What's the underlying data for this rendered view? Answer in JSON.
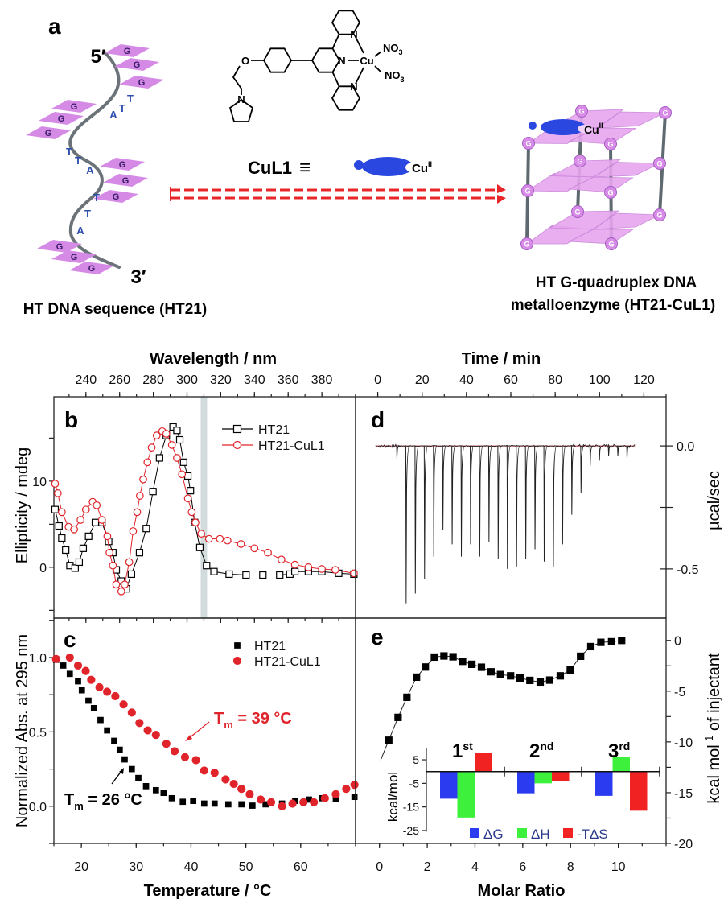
{
  "panel_a": {
    "panel_label": "a",
    "five_prime": "5′",
    "three_prime": "3′",
    "guanine": "G",
    "adenine": "A",
    "thymine": "T",
    "sequence_caption": "HT DNA sequence (HT21)",
    "complex_name": "CuL1",
    "equivalence": "≡",
    "copper": "Cu",
    "oxidation_state": "II",
    "atom_O": "O",
    "atom_N": "N",
    "nitrate": "NO",
    "nitrate_sub": "3",
    "product_caption_line1": "HT G-quadruplex DNA",
    "product_caption_line2": "metalloenzyme (HT21-CuL1)",
    "colors": {
      "guanine_plate": "#d58be6",
      "strand": "#6b7378",
      "cul1": "#2a48e0",
      "arrow": "#e8262a",
      "rod": "#5f6a70"
    }
  },
  "chart_data": [
    {
      "type": "scatter",
      "panel_label": "b",
      "xlabel": "Wavelength / nm",
      "ylabel": "Ellipticity / mdeg",
      "xlim": [
        221,
        400
      ],
      "ylim": [
        -5.9,
        19.8
      ],
      "xticks": [
        "240",
        "260",
        "280",
        "300",
        "320",
        "340",
        "360",
        "380"
      ],
      "yticks": [
        "0",
        "10"
      ],
      "x_axis_position": "top",
      "highlight_band_nm": 310,
      "legend_position": "top-right",
      "series": [
        {
          "name": "HT21",
          "marker": "open-square",
          "color": "#000000",
          "x": [
            221.7,
            224,
            225.7,
            228,
            230.5,
            233.6,
            236,
            238.4,
            241.6,
            245.6,
            249.5,
            253.5,
            256,
            258,
            261,
            264,
            267,
            271.8,
            275.8,
            279.8,
            283.7,
            287.7,
            291.7,
            294,
            295.7,
            298,
            300.5,
            302,
            304.5,
            307.6,
            311.6,
            316,
            325,
            335,
            345,
            355,
            361,
            364,
            372,
            380,
            390,
            399
          ],
          "y": [
            6.7,
            4.8,
            3.4,
            2.0,
            0.2,
            -0.1,
            0.6,
            2.2,
            3.6,
            5.2,
            5.2,
            3.0,
            1.7,
            -0.3,
            -1.6,
            -2.5,
            -0.8,
            1.7,
            4.5,
            8.8,
            12.7,
            15.3,
            16.3,
            15.9,
            14.8,
            12.2,
            10.6,
            8.9,
            5.2,
            2.3,
            0.2,
            -0.5,
            -0.8,
            -0.9,
            -0.9,
            -0.9,
            -0.8,
            -0.5,
            -0.5,
            -0.5,
            -0.7,
            -0.8
          ]
        },
        {
          "name": "HT21-CuL1",
          "marker": "open-circle",
          "color": "#e0242b",
          "x": [
            221.7,
            223.3,
            225.7,
            229.7,
            233,
            236.8,
            240,
            244,
            246.4,
            249.5,
            252.7,
            254,
            256,
            258,
            261,
            263,
            265.7,
            268,
            270.4,
            272,
            274,
            276.5,
            279,
            282,
            285.3,
            287.7,
            291,
            294,
            297,
            300.5,
            302.8,
            305,
            308.4,
            313,
            319.5,
            324,
            332,
            340,
            348,
            356,
            364,
            372,
            380,
            388,
            399
          ],
          "y": [
            9.7,
            8.6,
            6.4,
            4.7,
            4.4,
            5.5,
            6.7,
            7.6,
            7.2,
            5.5,
            3.6,
            1.7,
            0.2,
            -2.0,
            -2.8,
            -2.0,
            0.6,
            4.2,
            6.4,
            8.3,
            10.2,
            12.2,
            13.9,
            15.3,
            15.8,
            15.5,
            14.2,
            12.7,
            10.8,
            8.0,
            6.4,
            5.2,
            3.9,
            3.3,
            3.3,
            3.1,
            2.7,
            2.2,
            1.7,
            0.9,
            0.3,
            0.0,
            -0.2,
            -0.3,
            -0.7
          ]
        }
      ]
    },
    {
      "type": "scatter",
      "panel_label": "c",
      "xlabel": "Temperature / °C",
      "ylabel": "Normalized Abs. at 295 nm",
      "xlim": [
        15,
        70
      ],
      "ylim": [
        -0.25,
        1.265
      ],
      "xticks": [
        "20",
        "30",
        "40",
        "50",
        "60"
      ],
      "yticks": [
        "0.0",
        "0.5",
        "1.0"
      ],
      "legend_position": "top-right",
      "annotations": [
        {
          "symbol": "T",
          "sub": "m",
          "text": " = 39 °C",
          "series": "HT21-CuL1",
          "color": "#e0242b"
        },
        {
          "symbol": "T",
          "sub": "m",
          "text": " = 26 °C",
          "series": "HT21",
          "color": "#000000"
        }
      ],
      "series": [
        {
          "name": "HT21",
          "marker": "filled-square",
          "color": "#000000",
          "x": [
            15.4,
            16.7,
            17.9,
            19.4,
            20.1,
            21.3,
            22.3,
            23.5,
            24.7,
            26.0,
            27.0,
            27.9,
            29.2,
            30.4,
            31.8,
            33.6,
            35.0,
            36.5,
            38.5,
            40.4,
            42.4,
            44.3,
            46.8,
            49.2,
            51.2,
            53.6,
            56.6,
            59.0,
            61.5,
            63.9,
            66.4,
            69.8
          ],
          "y": [
            0.985,
            0.946,
            0.89,
            0.84,
            0.78,
            0.71,
            0.66,
            0.58,
            0.51,
            0.44,
            0.38,
            0.315,
            0.25,
            0.19,
            0.135,
            0.108,
            0.09,
            0.054,
            0.03,
            0.036,
            0.018,
            0.018,
            0.013,
            0.013,
            0.004,
            0.013,
            0.018,
            0.036,
            0.045,
            0.054,
            0.049,
            0.063
          ]
        },
        {
          "name": "HT21-CuL1",
          "marker": "filled-circle",
          "color": "#e0242b",
          "x": [
            15.4,
            17.9,
            19.4,
            20.8,
            21.8,
            23.3,
            24.7,
            26.2,
            27.7,
            29.2,
            30.6,
            32.1,
            33.6,
            35.5,
            37.0,
            38.9,
            40.9,
            42.4,
            44.3,
            46.3,
            47.8,
            49.2,
            50.7,
            52.7,
            54.6,
            56.6,
            58.5,
            60.5,
            62.4,
            64.4,
            66.4,
            68.3,
            69.8
          ],
          "y": [
            0.99,
            1.0,
            0.946,
            0.91,
            0.85,
            0.8,
            0.77,
            0.74,
            0.685,
            0.63,
            0.56,
            0.51,
            0.48,
            0.42,
            0.37,
            0.33,
            0.31,
            0.24,
            0.225,
            0.18,
            0.15,
            0.117,
            0.081,
            0.045,
            0.027,
            0.0,
            0.018,
            0.027,
            0.027,
            0.054,
            0.081,
            0.117,
            0.144
          ]
        }
      ]
    },
    {
      "type": "line",
      "panel_label": "d",
      "xlabel": "Time / min",
      "ylabel": "µcal/sec",
      "xlim": [
        -10,
        130
      ],
      "ylim": [
        -0.7,
        0.2
      ],
      "xticks": [
        "0",
        "20",
        "40",
        "60",
        "80",
        "100",
        "120"
      ],
      "yticks": [
        "0.0",
        "-0.5"
      ],
      "x_axis_position": "top",
      "y_axis_position": "right",
      "baseline_color": "#e06070",
      "trace_color": "#222222",
      "injection_times": [
        8.5,
        12.65,
        16.8,
        20.95,
        25.1,
        29.25,
        33.4,
        37.55,
        41.7,
        45.85,
        50.0,
        54.15,
        58.3,
        62.45,
        66.6,
        70.75,
        74.9,
        79.05,
        83.2,
        87.35,
        91.5,
        95.65,
        99.8,
        103.95,
        108.1,
        112.25
      ],
      "peak_heights": [
        -0.05,
        -0.64,
        -0.6,
        -0.54,
        -0.45,
        -0.34,
        -0.4,
        -0.45,
        -0.4,
        -0.45,
        -0.39,
        -0.46,
        -0.5,
        -0.49,
        -0.46,
        -0.42,
        -0.47,
        -0.49,
        -0.4,
        -0.28,
        -0.19,
        -0.08,
        -0.06,
        -0.04,
        -0.04,
        -0.05
      ]
    },
    {
      "type": "scatter",
      "panel_label": "e",
      "xlabel": "Molar Ratio",
      "ylabel": "kcal mol",
      "ylabel_sup": "-1",
      "ylabel_tail": " of injectant",
      "xlim": [
        -1,
        12
      ],
      "ylim": [
        -20,
        2.2
      ],
      "xticks": [
        "0",
        "2",
        "4",
        "6",
        "8",
        "10"
      ],
      "yticks": [
        "0",
        "-5",
        "-10",
        "-15",
        "-20"
      ],
      "y_axis_position": "right",
      "series": [
        {
          "marker": "filled-square",
          "color": "#000000",
          "fit_line": true,
          "x": [
            0.39,
            0.78,
            1.15,
            1.55,
            1.92,
            2.3,
            2.7,
            3.08,
            3.48,
            3.87,
            4.27,
            4.67,
            5.07,
            5.49,
            5.89,
            6.3,
            6.73,
            7.13,
            7.57,
            7.99,
            8.42,
            8.85,
            9.27,
            9.72,
            10.14
          ],
          "y": [
            -9.83,
            -7.58,
            -5.6,
            -3.62,
            -2.62,
            -1.64,
            -1.53,
            -1.61,
            -2.06,
            -2.35,
            -2.64,
            -3.09,
            -3.36,
            -3.49,
            -3.7,
            -3.94,
            -4.1,
            -3.91,
            -3.49,
            -2.91,
            -1.56,
            -0.61,
            -0.19,
            -0.13,
            0.0
          ]
        }
      ]
    },
    {
      "type": "bar",
      "inset_of": "e",
      "ylabel": "kcal/mol",
      "ylim": [
        -25,
        10
      ],
      "yticks": [
        "5",
        "-5",
        "-15",
        "-25"
      ],
      "categories": [
        {
          "num": "1",
          "sup": "st"
        },
        {
          "num": "2",
          "sup": "nd"
        },
        {
          "num": "3",
          "sup": "rd"
        }
      ],
      "legend_position": "bottom",
      "series": [
        {
          "name": "ΔG",
          "color": "#2b3cf0",
          "values": [
            -11.5,
            -9.2,
            -10.3
          ]
        },
        {
          "name": "ΔH",
          "color": "#3cf03c",
          "values": [
            -19.5,
            -5.0,
            6.2
          ]
        },
        {
          "name": "-TΔS",
          "color": "#f02222",
          "values": [
            7.8,
            -4.2,
            -16.6
          ]
        }
      ],
      "legend_text_color": "#2a3a8a"
    }
  ]
}
